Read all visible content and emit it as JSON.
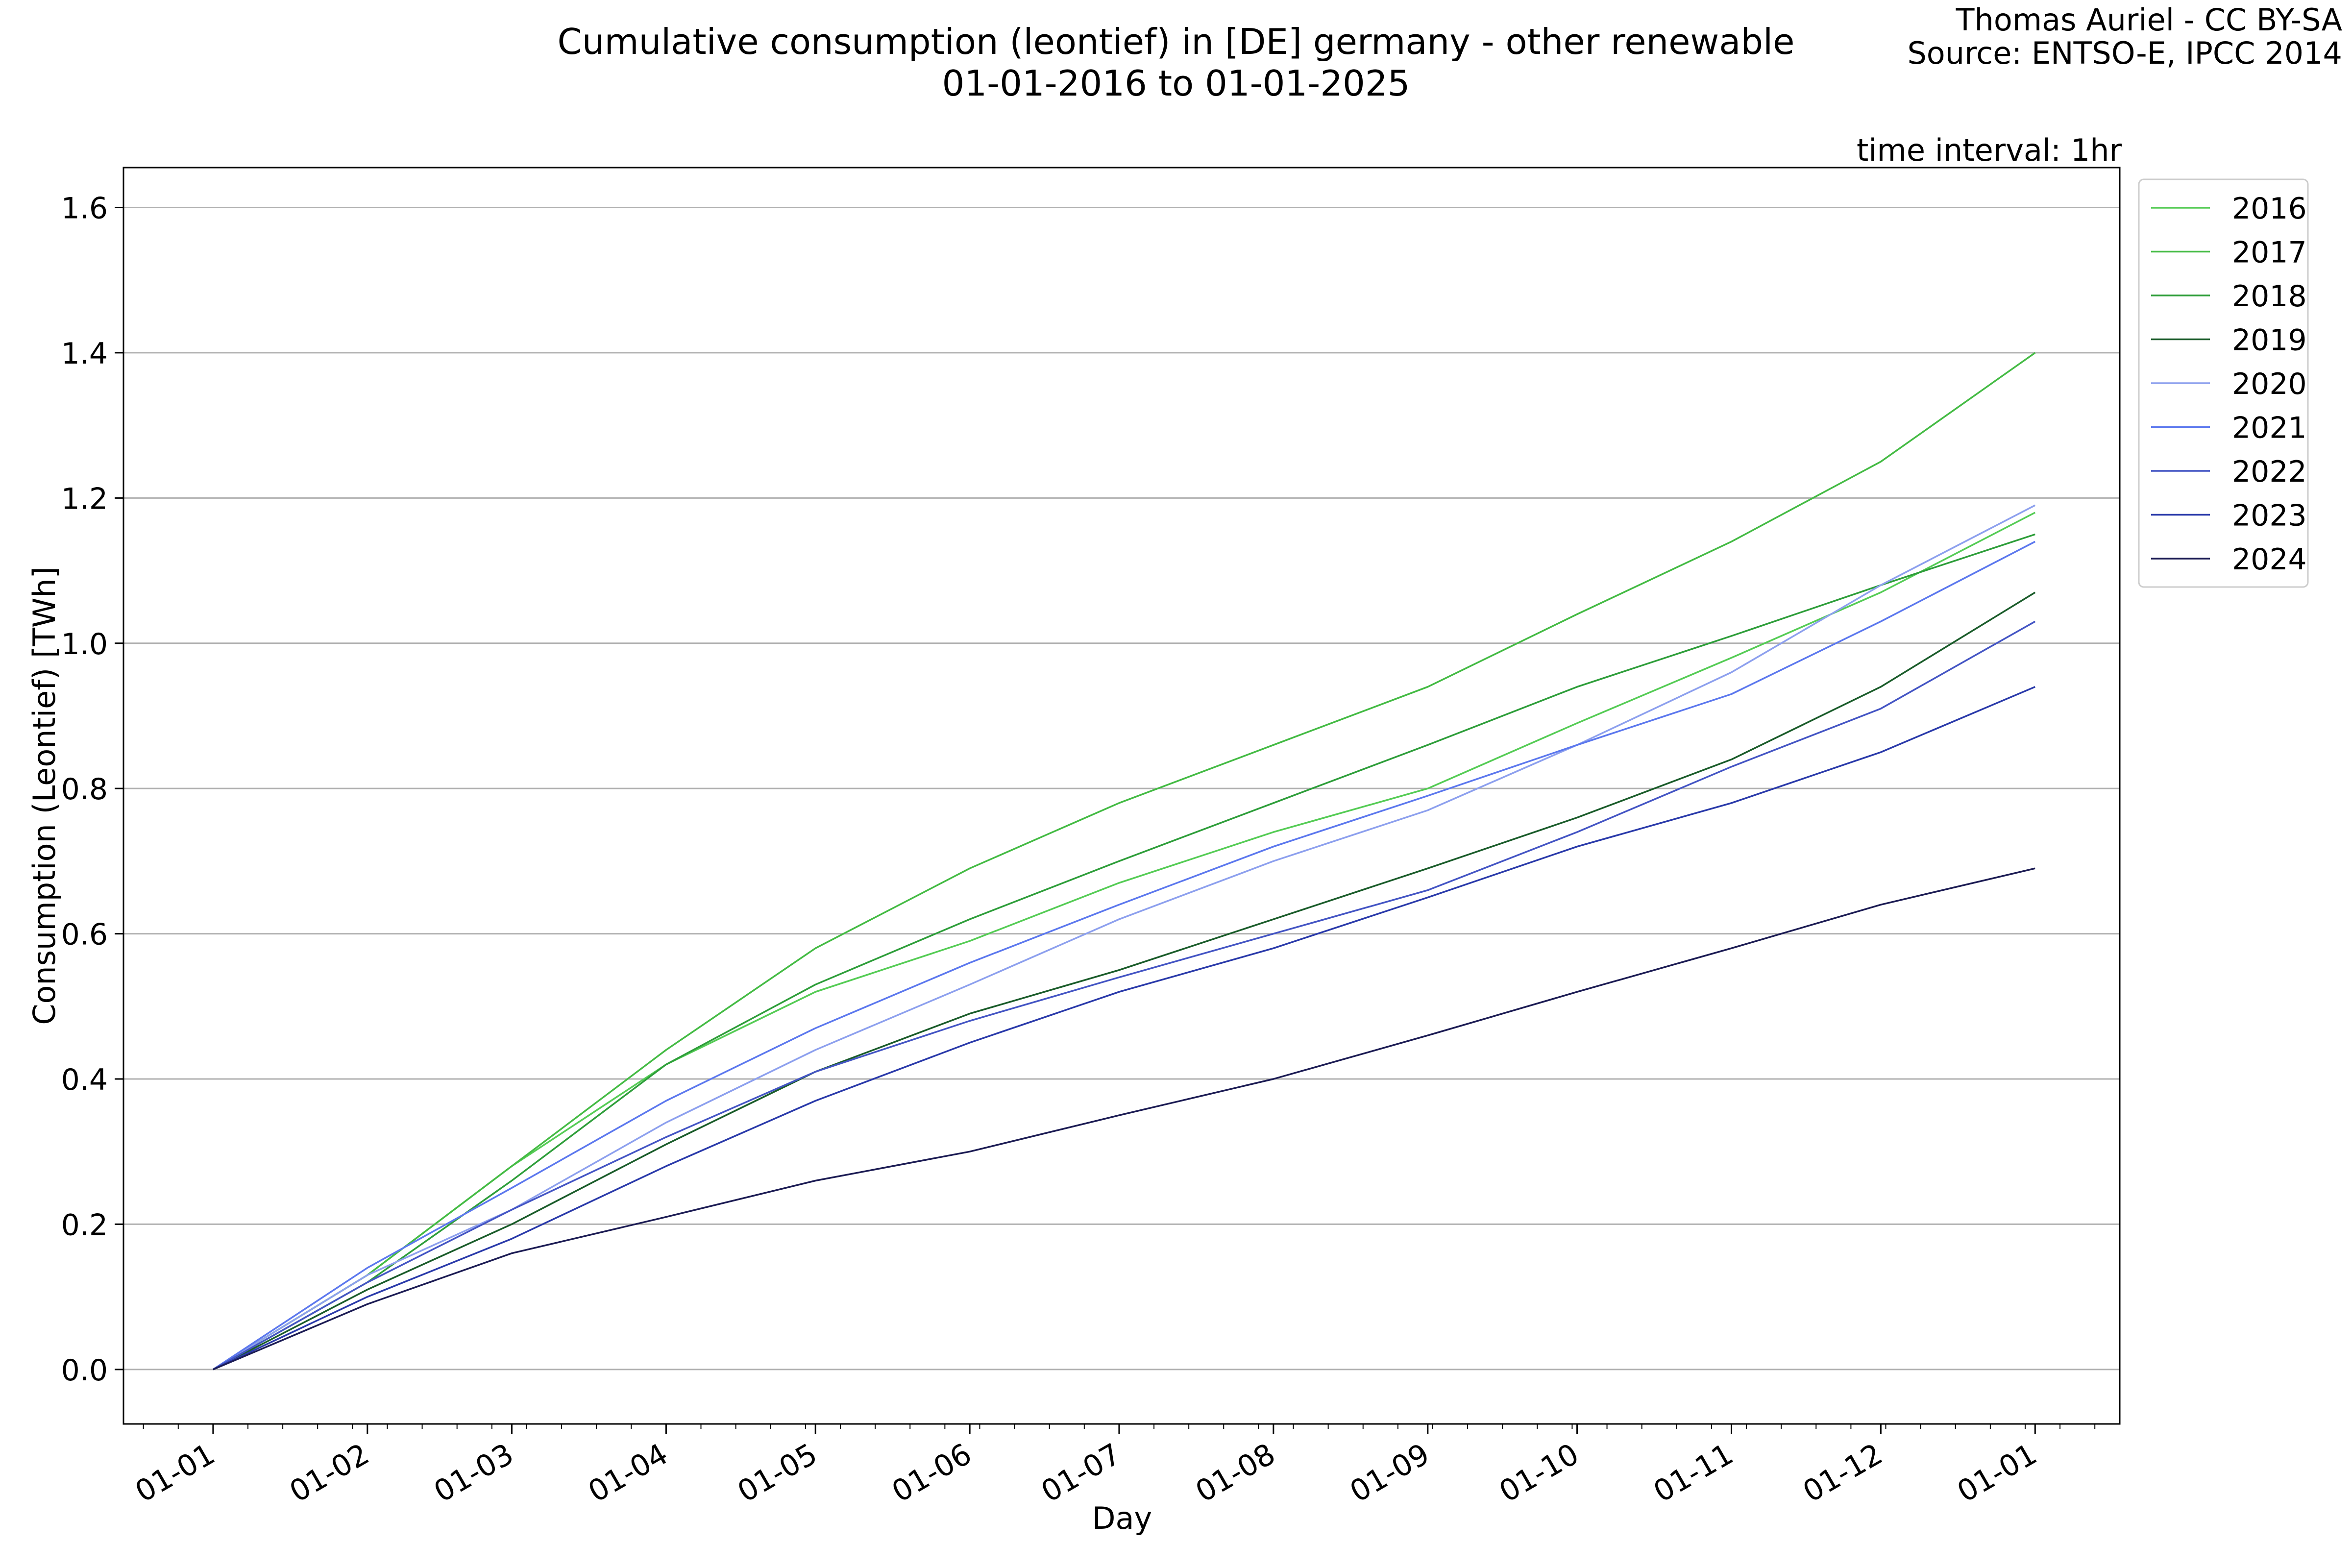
{
  "chart_data": {
    "type": "line",
    "title_line1": "Cumulative consumption (leontief) in [DE] germany - other renewable",
    "title_line2": "01-01-2016 to 01-01-2025",
    "credit_line1": "Thomas Auriel - CC BY-SA",
    "credit_line2": "Source: ENTSO-E, IPCC 2014",
    "annotation": "time interval: 1hr",
    "xlabel": "Day",
    "ylabel": "Consumption (Leontief) [TWh]",
    "ylim": [
      -0.075,
      1.655
    ],
    "xlim_days": [
      -18,
      383
    ],
    "grid": "horizontal",
    "legend_position": "right-outside-top",
    "x_ticks": [
      {
        "label": "01-01",
        "day": 0
      },
      {
        "label": "01-02",
        "day": 31
      },
      {
        "label": "01-03",
        "day": 60
      },
      {
        "label": "01-04",
        "day": 91
      },
      {
        "label": "01-05",
        "day": 121
      },
      {
        "label": "01-06",
        "day": 152
      },
      {
        "label": "01-07",
        "day": 182
      },
      {
        "label": "01-08",
        "day": 213
      },
      {
        "label": "01-09",
        "day": 244
      },
      {
        "label": "01-10",
        "day": 274
      },
      {
        "label": "01-11",
        "day": 305
      },
      {
        "label": "01-12",
        "day": 335
      },
      {
        "label": "01-01",
        "day": 366
      }
    ],
    "y_ticks": [
      {
        "label": "0.0",
        "value": 0.0
      },
      {
        "label": "0.2",
        "value": 0.2
      },
      {
        "label": "0.4",
        "value": 0.4
      },
      {
        "label": "0.6",
        "value": 0.6
      },
      {
        "label": "0.8",
        "value": 0.8
      },
      {
        "label": "1.0",
        "value": 1.0
      },
      {
        "label": "1.2",
        "value": 1.2
      },
      {
        "label": "1.4",
        "value": 1.4
      },
      {
        "label": "1.6",
        "value": 1.6
      }
    ],
    "x": [
      0,
      31,
      60,
      91,
      121,
      152,
      182,
      213,
      244,
      274,
      305,
      335,
      366
    ],
    "series": [
      {
        "name": "2016",
        "color": "#55cc55",
        "values": [
          0.0,
          0.13,
          0.28,
          0.42,
          0.52,
          0.59,
          0.67,
          0.74,
          0.8,
          0.89,
          0.98,
          1.07,
          1.18
        ]
      },
      {
        "name": "2017",
        "color": "#44bb44",
        "values": [
          0.0,
          0.13,
          0.28,
          0.44,
          0.58,
          0.69,
          0.78,
          0.86,
          0.94,
          1.04,
          1.14,
          1.25,
          1.4
        ]
      },
      {
        "name": "2018",
        "color": "#2e9e3a",
        "values": [
          0.0,
          0.12,
          0.26,
          0.42,
          0.53,
          0.62,
          0.7,
          0.78,
          0.86,
          0.94,
          1.01,
          1.08,
          1.15
        ]
      },
      {
        "name": "2019",
        "color": "#1a5c2a",
        "values": [
          0.0,
          0.11,
          0.2,
          0.31,
          0.41,
          0.49,
          0.55,
          0.62,
          0.69,
          0.76,
          0.84,
          0.94,
          1.07
        ]
      },
      {
        "name": "2020",
        "color": "#8da0ee",
        "values": [
          0.0,
          0.13,
          0.22,
          0.34,
          0.44,
          0.53,
          0.62,
          0.7,
          0.77,
          0.86,
          0.96,
          1.08,
          1.19
        ]
      },
      {
        "name": "2021",
        "color": "#5c78ee",
        "values": [
          0.0,
          0.14,
          0.25,
          0.37,
          0.47,
          0.56,
          0.64,
          0.72,
          0.79,
          0.86,
          0.93,
          1.03,
          1.14
        ]
      },
      {
        "name": "2022",
        "color": "#4455c4",
        "values": [
          0.0,
          0.12,
          0.22,
          0.32,
          0.41,
          0.48,
          0.54,
          0.6,
          0.66,
          0.74,
          0.83,
          0.91,
          1.03
        ]
      },
      {
        "name": "2023",
        "color": "#2a3aaa",
        "values": [
          0.0,
          0.1,
          0.18,
          0.28,
          0.37,
          0.45,
          0.52,
          0.58,
          0.65,
          0.72,
          0.78,
          0.85,
          0.94
        ]
      },
      {
        "name": "2024",
        "color": "#1c1c54",
        "values": [
          0.0,
          0.09,
          0.16,
          0.21,
          0.26,
          0.3,
          0.35,
          0.4,
          0.46,
          0.52,
          0.58,
          0.64,
          0.69
        ]
      }
    ]
  }
}
